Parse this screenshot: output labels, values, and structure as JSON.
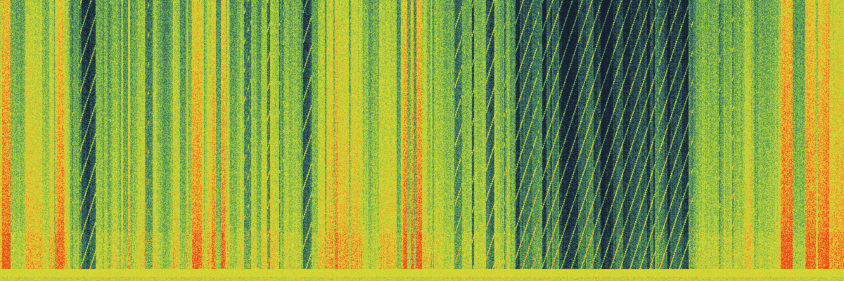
{
  "image": {
    "kind": "spectrogram",
    "colormap": [
      "#182030",
      "#2a4a55",
      "#3f7a5f",
      "#6fae4f",
      "#b6cf3a",
      "#e0d832",
      "#f08a2a",
      "#e8401e"
    ]
  }
}
